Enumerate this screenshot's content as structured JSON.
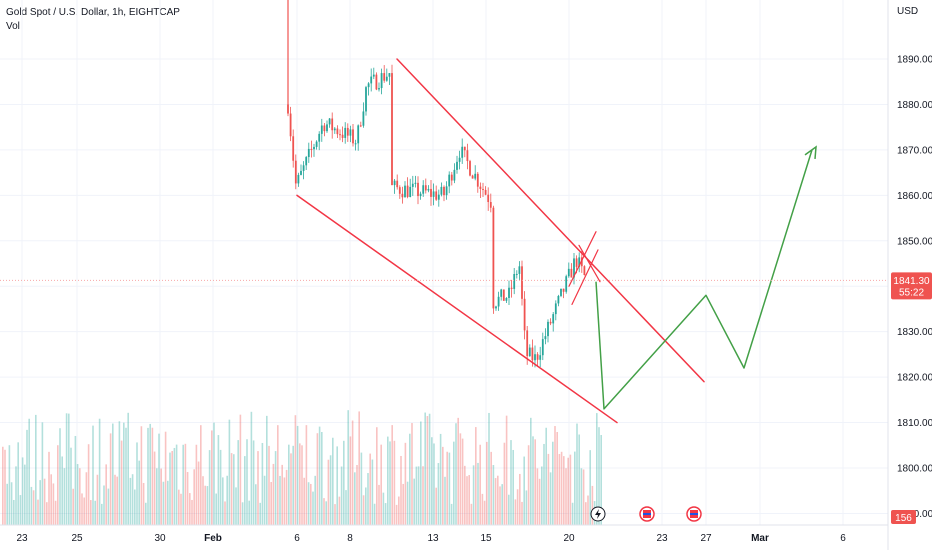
{
  "legend": {
    "symbol": "Gold Spot / U.S. Dollar, 1h, EIGHTCAP",
    "volume_label": "Vol"
  },
  "chart_data": {
    "type": "candlestick",
    "title": "Gold Spot / U.S. Dollar, 1h, EIGHTCAP",
    "currency": "USD",
    "ylim": [
      1793,
      1910
    ],
    "y_ticks": [
      1890,
      1880,
      1870,
      1860,
      1850,
      1840,
      1830,
      1820,
      1810,
      1800,
      1790
    ],
    "x_ticks": [
      "23",
      "25",
      "30",
      "Feb",
      "6",
      "8",
      "13",
      "15",
      "20",
      "23",
      "27",
      "Mar",
      "6"
    ],
    "last_price": "1841.30",
    "countdown": "55:22",
    "volume_value": "156",
    "grid": true,
    "colors": {
      "up": "#26a69a",
      "down": "#ef5350",
      "channel": "#f23645",
      "projection": "#43a047"
    },
    "price_path": [
      {
        "date": "Feb 6",
        "price": 1880
      },
      {
        "date": "Feb 6",
        "price": 1862
      },
      {
        "date": "Feb 7",
        "price": 1876
      },
      {
        "date": "Feb 8",
        "price": 1872
      },
      {
        "date": "Feb 9",
        "price": 1884
      },
      {
        "date": "Feb 10",
        "price": 1887
      },
      {
        "date": "Feb 10",
        "price": 1862
      },
      {
        "date": "Feb 13",
        "price": 1860
      },
      {
        "date": "Feb 14",
        "price": 1870
      },
      {
        "date": "Feb 15",
        "price": 1858
      },
      {
        "date": "Feb 15",
        "price": 1836
      },
      {
        "date": "Feb 16",
        "price": 1838
      },
      {
        "date": "Feb 17",
        "price": 1845
      },
      {
        "date": "Feb 17",
        "price": 1825
      },
      {
        "date": "Feb 18",
        "price": 1824
      },
      {
        "date": "Feb 20",
        "price": 1846
      },
      {
        "date": "Feb 21",
        "price": 1841
      }
    ],
    "descending_channel": {
      "upper": [
        {
          "date": "Feb 9",
          "price": 1890
        },
        {
          "date": "Feb 25",
          "price": 1819
        }
      ],
      "lower": [
        {
          "date": "Feb 6",
          "price": 1860
        },
        {
          "date": "Feb 23",
          "price": 1810
        }
      ]
    },
    "projection": [
      {
        "date": "Feb 21",
        "price": 1841
      },
      {
        "date": "Feb 22",
        "price": 1813
      },
      {
        "date": "Feb 27",
        "price": 1838
      },
      {
        "date": "Mar 1",
        "price": 1822
      },
      {
        "date": "Mar 4",
        "price": 1870
      }
    ]
  }
}
